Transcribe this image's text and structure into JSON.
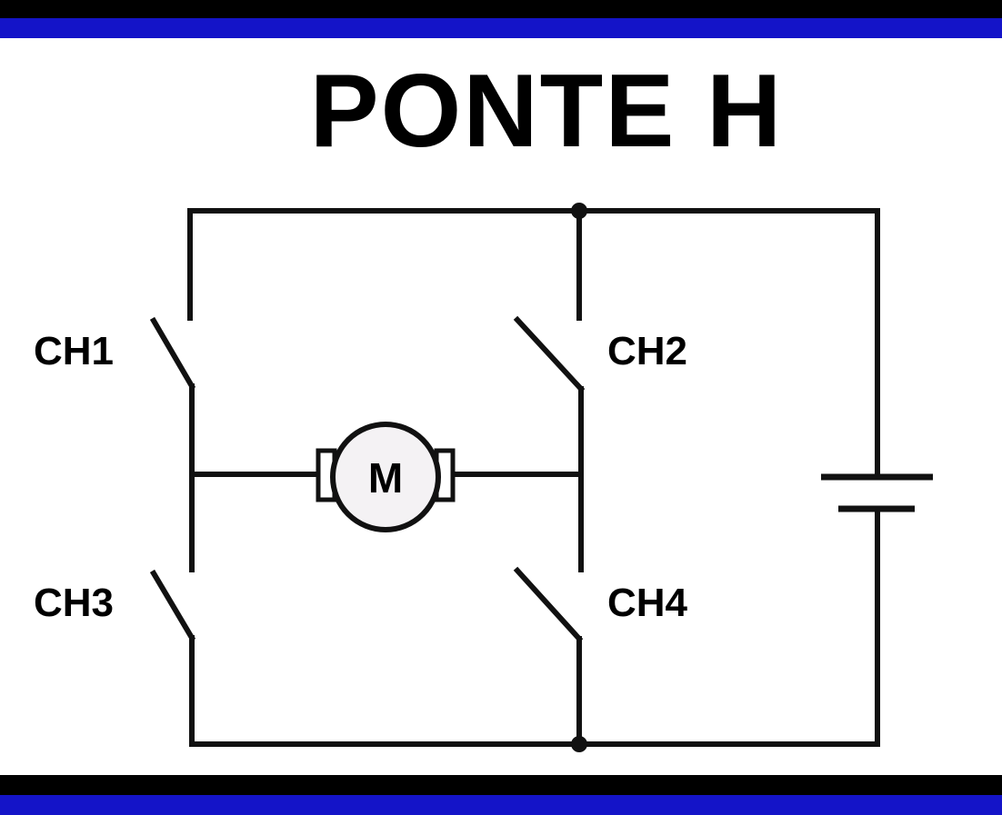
{
  "title": "PONTE H",
  "colors": {
    "band_black": "#000000",
    "band_blue": "#1414c8",
    "wire": "#111111",
    "motor_fill": "#f4f2f4"
  },
  "switches": [
    {
      "id": "ch1",
      "label": "CH1"
    },
    {
      "id": "ch2",
      "label": "CH2"
    },
    {
      "id": "ch3",
      "label": "CH3"
    },
    {
      "id": "ch4",
      "label": "CH4"
    }
  ],
  "motor": {
    "label": "M"
  }
}
